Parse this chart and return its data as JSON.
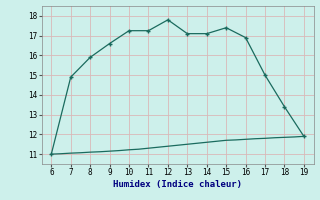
{
  "x_upper": [
    6,
    7,
    8,
    9,
    10,
    11,
    12,
    13,
    14,
    15,
    16,
    17,
    18,
    19
  ],
  "y_upper": [
    11.0,
    14.9,
    15.9,
    16.6,
    17.25,
    17.25,
    17.8,
    17.1,
    17.1,
    17.4,
    16.9,
    15.0,
    13.4,
    11.9
  ],
  "x_lower": [
    6,
    6.5,
    7,
    7.5,
    8,
    8.5,
    9,
    9.5,
    10,
    10.5,
    11,
    11.5,
    12,
    12.5,
    13,
    13.5,
    14,
    14.5,
    15,
    15.5,
    16,
    16.5,
    17,
    17.5,
    18,
    18.5,
    19
  ],
  "y_lower": [
    11.0,
    11.02,
    11.05,
    11.07,
    11.1,
    11.12,
    11.15,
    11.18,
    11.22,
    11.25,
    11.3,
    11.35,
    11.4,
    11.45,
    11.5,
    11.55,
    11.6,
    11.65,
    11.7,
    11.72,
    11.75,
    11.78,
    11.8,
    11.83,
    11.85,
    11.87,
    11.9
  ],
  "line_color": "#1a6b5e",
  "bg_color": "#cdf0eb",
  "grid_color": "#d9b8b8",
  "xlabel": "Humidex (Indice chaleur)",
  "xlim": [
    5.5,
    19.5
  ],
  "ylim": [
    10.5,
    18.5
  ],
  "xticks": [
    6,
    7,
    8,
    9,
    10,
    11,
    12,
    13,
    14,
    15,
    16,
    17,
    18,
    19
  ],
  "yticks": [
    11,
    12,
    13,
    14,
    15,
    16,
    17,
    18
  ]
}
